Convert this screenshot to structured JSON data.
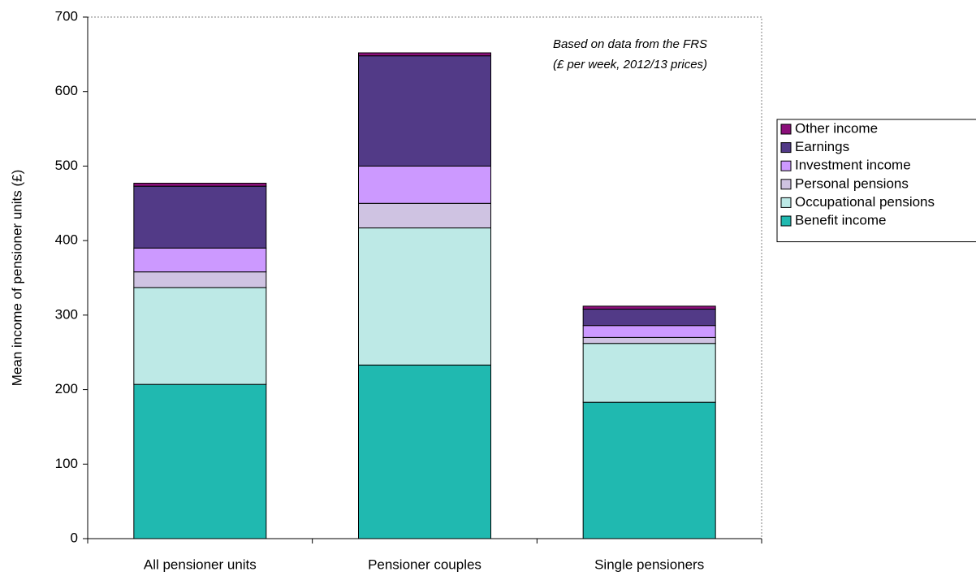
{
  "chart_data": {
    "type": "stacked_bar",
    "y_label": "Mean income of pensioner units (£)",
    "annotation": [
      "Based on data from the FRS",
      "(£ per week, 2012/13 prices)"
    ],
    "categories": [
      "All pensioner units",
      "Pensioner couples",
      "Single pensioners"
    ],
    "series": [
      {
        "name": "Benefit income",
        "color": "#20b9b0",
        "values": [
          207,
          233,
          183
        ]
      },
      {
        "name": "Occupational pensions",
        "color": "#bde9e6",
        "values": [
          130,
          184,
          79
        ]
      },
      {
        "name": "Personal pensions",
        "color": "#cfc3e2",
        "values": [
          21,
          33,
          8
        ]
      },
      {
        "name": "Investment income",
        "color": "#cc99ff",
        "values": [
          32,
          50,
          16
        ]
      },
      {
        "name": "Earnings",
        "color": "#523a87",
        "values": [
          83,
          148,
          22
        ]
      },
      {
        "name": "Other income",
        "color": "#8b0f7a",
        "values": [
          4,
          4,
          4
        ]
      }
    ],
    "ylim": [
      0,
      700
    ],
    "yticks": [
      0,
      100,
      200,
      300,
      400,
      500,
      600,
      700
    ],
    "legend": "right"
  }
}
